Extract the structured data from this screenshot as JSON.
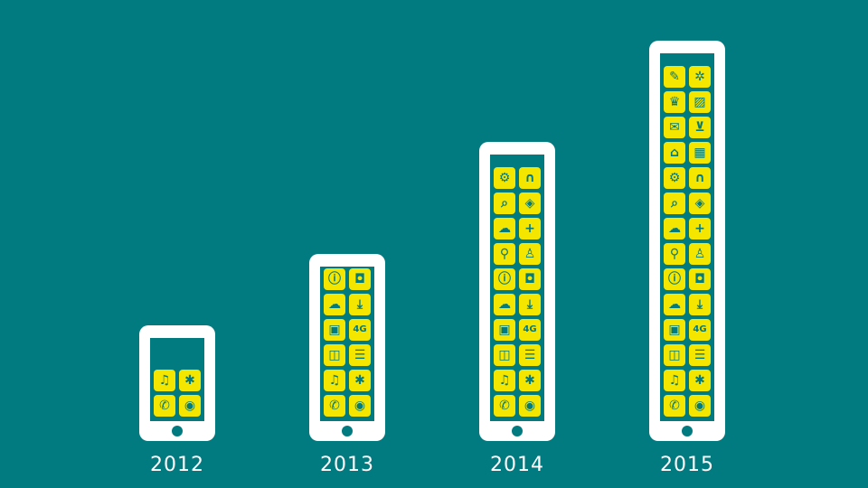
{
  "diagram": {
    "phones": [
      {
        "year": "2012",
        "apps": [
          "music-icon",
          "lightbulb-icon",
          "phone-icon",
          "gamepad-icon"
        ]
      },
      {
        "year": "2013",
        "apps": [
          "info-icon",
          "camera-icon",
          "chat-icon",
          "download-icon",
          "text-box-icon",
          "4G",
          "shopping-bag-icon",
          "news-icon",
          "music-icon",
          "lightbulb-icon",
          "phone-icon",
          "gamepad-icon"
        ]
      },
      {
        "year": "2014",
        "apps": [
          "gear-icon",
          "headphones-icon",
          "search-icon",
          "map-icon",
          "cloud-icon",
          "plus-icon",
          "location-pin-icon",
          "contact-icon",
          "info-icon",
          "camera-icon",
          "chat-icon",
          "download-icon",
          "text-box-icon",
          "4G",
          "shopping-bag-icon",
          "news-icon",
          "music-icon",
          "lightbulb-icon",
          "phone-icon",
          "gamepad-icon"
        ]
      },
      {
        "year": "2015",
        "apps": [
          "pencil-icon",
          "network-icon",
          "graduation-cap-icon",
          "image-icon",
          "mail-icon",
          "basket-icon",
          "home-icon",
          "calendar-icon",
          "gear-icon",
          "headphones-icon",
          "search-icon",
          "map-icon",
          "cloud-icon",
          "plus-icon",
          "location-pin-icon",
          "contact-icon",
          "info-icon",
          "camera-icon",
          "chat-icon",
          "download-icon",
          "text-box-icon",
          "4G",
          "shopping-bag-icon",
          "news-icon",
          "music-icon",
          "lightbulb-icon",
          "phone-icon",
          "gamepad-icon"
        ]
      }
    ]
  },
  "colors": {
    "background": "#017a80",
    "phone": "#ffffff",
    "tile": "#f5e600"
  }
}
